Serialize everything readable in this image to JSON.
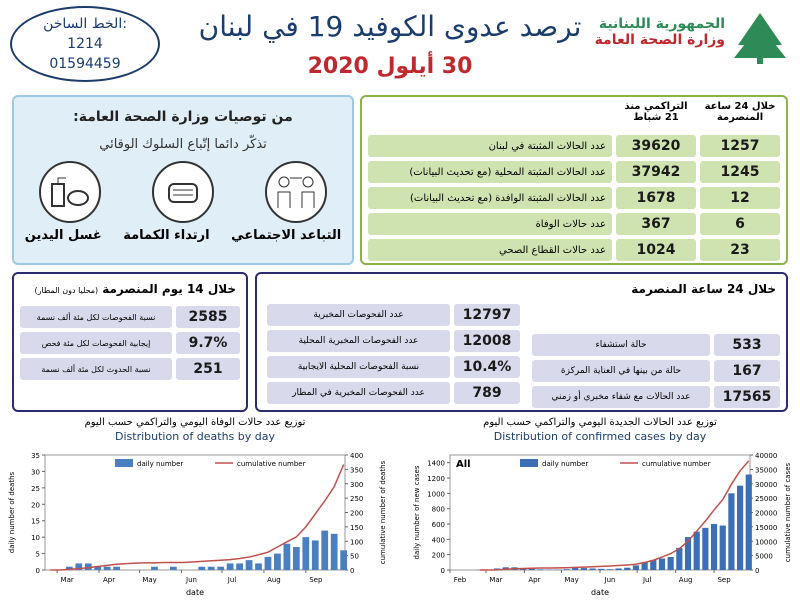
{
  "header": {
    "hotline_label": "الخط الساخن:",
    "hotline_1": "1214",
    "hotline_2": "01594459",
    "title": "ترصد عدوى الكوفيد 19 في لبنان",
    "date": "30 أيلول 2020",
    "ministry_1": "الجمهورية اللبنانية",
    "ministry_2": "وزارة الصحة العامة"
  },
  "recommendations": {
    "title": "من توصيات وزارة الصحة العامة:",
    "subtitle": "تذكّر دائما إتّباع السلوك الوقائي",
    "items": [
      "التباعد الاجتماعي",
      "ارتداء الكمامة",
      "غسل اليدين"
    ]
  },
  "summary": {
    "headers": [
      "خلال 24 ساعة المنصرمة",
      "التراكمي منذ 21 شباط"
    ],
    "rows": [
      {
        "last_24h": 1257,
        "cumulative": 39620,
        "label": "عدد الحالات المثبتة في لبنان"
      },
      {
        "last_24h": 1245,
        "cumulative": 37942,
        "label": "عدد الحالات المثبتة المحلية (مع تحديث البيانات)"
      },
      {
        "last_24h": 12,
        "cumulative": 1678,
        "label": "عدد الحالات المثبتة الوافدة (مع تحديث البيانات)"
      },
      {
        "last_24h": 6,
        "cumulative": 367,
        "label": "عدد حالات الوفاة"
      },
      {
        "last_24h": 23,
        "cumulative": 1024,
        "label": "عدد حالات القطاع الصحي"
      }
    ]
  },
  "last_14_days": {
    "title": "خلال 14 يوم المنصرمة",
    "note": "(محليا دون المطار)",
    "rows": [
      {
        "value": 2585,
        "label": "نسبة الفحوصات لكل مئة ألف نسمة"
      },
      {
        "value": "9.7%",
        "label": "إيجابية الفحوصات لكل مئة فحص"
      },
      {
        "value": 251,
        "label": "نسبة الحدوث لكل مئة ألف نسمة"
      }
    ]
  },
  "last_24_hours": {
    "title": "خلال 24 ساعة المنصرمة",
    "tests": [
      {
        "value": 12797,
        "label": "عدد الفحوصات المخبرية"
      },
      {
        "value": 12008,
        "label": "عدد الفحوصات المخبرية المحلية"
      },
      {
        "value": "10.4%",
        "label": "نسبة الفحوصات المحلية الايجابية"
      },
      {
        "value": 789,
        "label": "عدد الفحوصات المخبرية في المطار"
      }
    ],
    "cases": [
      {
        "value": 533,
        "label": "حالة استشفاء"
      },
      {
        "value": 167,
        "label": "حالة من بينها في العناية المركزة"
      },
      {
        "value": 17565,
        "label": "عدد الحالات مع شفاء مخبري أو زمني"
      }
    ]
  },
  "chart_data": [
    {
      "type": "bar-line",
      "subtitle": "توزيع عدد حالات الوفاة اليومي والتراكمي حسب اليوم",
      "title": "Distribution of deaths by day",
      "x_label": "date",
      "y_label": "daily number of deaths",
      "y2_label": "cumulative number of deaths",
      "x": [
        56,
        63,
        70,
        77,
        84,
        91,
        98,
        105,
        112,
        119,
        126,
        133,
        140,
        147,
        154,
        161,
        168,
        175,
        182,
        189,
        196,
        203,
        210,
        217,
        224,
        231,
        238,
        245,
        252,
        259,
        266,
        273
      ],
      "xlim": [
        52,
        274
      ],
      "xticks": [
        {
          "value": 61,
          "label": "Mar"
        },
        {
          "value": 92,
          "label": "Apr"
        },
        {
          "value": 122,
          "label": "May"
        },
        {
          "value": 153,
          "label": "Jun"
        },
        {
          "value": 183,
          "label": "Jul"
        },
        {
          "value": 214,
          "label": "Aug"
        },
        {
          "value": 245,
          "label": "Sep"
        }
      ],
      "ylim": [
        0,
        35
      ],
      "yticks": [
        0,
        5,
        10,
        15,
        20,
        25,
        30,
        35
      ],
      "y2lim": [
        0,
        400
      ],
      "y2ticks": [
        0,
        50,
        100,
        150,
        200,
        250,
        300,
        350,
        400
      ],
      "series": [
        {
          "name": "daily number",
          "color": "#4a7fc1",
          "values": [
            0,
            0,
            1,
            2,
            2,
            1,
            1,
            1,
            0,
            0,
            0,
            1,
            0,
            1,
            0,
            0,
            1,
            1,
            1,
            2,
            2,
            3,
            2,
            4,
            5,
            8,
            7,
            10,
            9,
            12,
            11,
            6
          ]
        },
        {
          "name": "cumulative number",
          "color": "#c0504d",
          "axis": "y2",
          "values": [
            0,
            0,
            2,
            5,
            8,
            12,
            16,
            20,
            22,
            24,
            25,
            25,
            26,
            26,
            26,
            28,
            30,
            32,
            34,
            36,
            40,
            45,
            53,
            62,
            80,
            98,
            115,
            150,
            195,
            240,
            290,
            367
          ]
        }
      ]
    },
    {
      "type": "bar-line",
      "subtitle": "توزيع عدد الحالات الجديدة اليومي والتراكمي حسب اليوم",
      "title": "Distribution of confirmed cases by day",
      "annotation": "All",
      "x_label": "date",
      "y_label": "daily number of new cases",
      "y2_label": "cumulative number of cases",
      "x": [
        56,
        63,
        70,
        77,
        84,
        91,
        98,
        105,
        112,
        119,
        126,
        133,
        140,
        147,
        154,
        161,
        168,
        175,
        182,
        189,
        196,
        203,
        210,
        217,
        224,
        231,
        238,
        245,
        252,
        259,
        266,
        273
      ],
      "xlim": [
        32,
        274
      ],
      "xticks": [
        {
          "value": 32,
          "label": "Feb"
        },
        {
          "value": 61,
          "label": "Mar"
        },
        {
          "value": 92,
          "label": "Apr"
        },
        {
          "value": 122,
          "label": "May"
        },
        {
          "value": 153,
          "label": "Jun"
        },
        {
          "value": 183,
          "label": "Jul"
        },
        {
          "value": 214,
          "label": "Aug"
        },
        {
          "value": 245,
          "label": "Sep"
        }
      ],
      "ylim": [
        0,
        1500
      ],
      "yticks": [
        0,
        200,
        400,
        600,
        800,
        1000,
        1200,
        1400
      ],
      "y2lim": [
        0,
        40000
      ],
      "y2ticks": [
        0,
        5000,
        10000,
        15000,
        20000,
        25000,
        30000,
        35000,
        40000
      ],
      "series": [
        {
          "name": "daily number",
          "color": "#3b6fb6",
          "values": [
            3,
            5,
            20,
            35,
            35,
            20,
            15,
            8,
            5,
            5,
            10,
            30,
            25,
            20,
            15,
            10,
            20,
            30,
            60,
            100,
            130,
            150,
            170,
            290,
            430,
            500,
            550,
            600,
            580,
            1000,
            1100,
            1245
          ]
        },
        {
          "name": "cumulative number",
          "color": "#c0504d",
          "axis": "y2",
          "values": [
            0,
            5,
            50,
            250,
            440,
            520,
            620,
            680,
            710,
            750,
            800,
            900,
            1000,
            1140,
            1260,
            1400,
            1550,
            1750,
            2000,
            2600,
            3400,
            4500,
            5700,
            7400,
            10000,
            13500,
            17000,
            20900,
            24500,
            29800,
            34500,
            37942
          ]
        }
      ]
    }
  ]
}
